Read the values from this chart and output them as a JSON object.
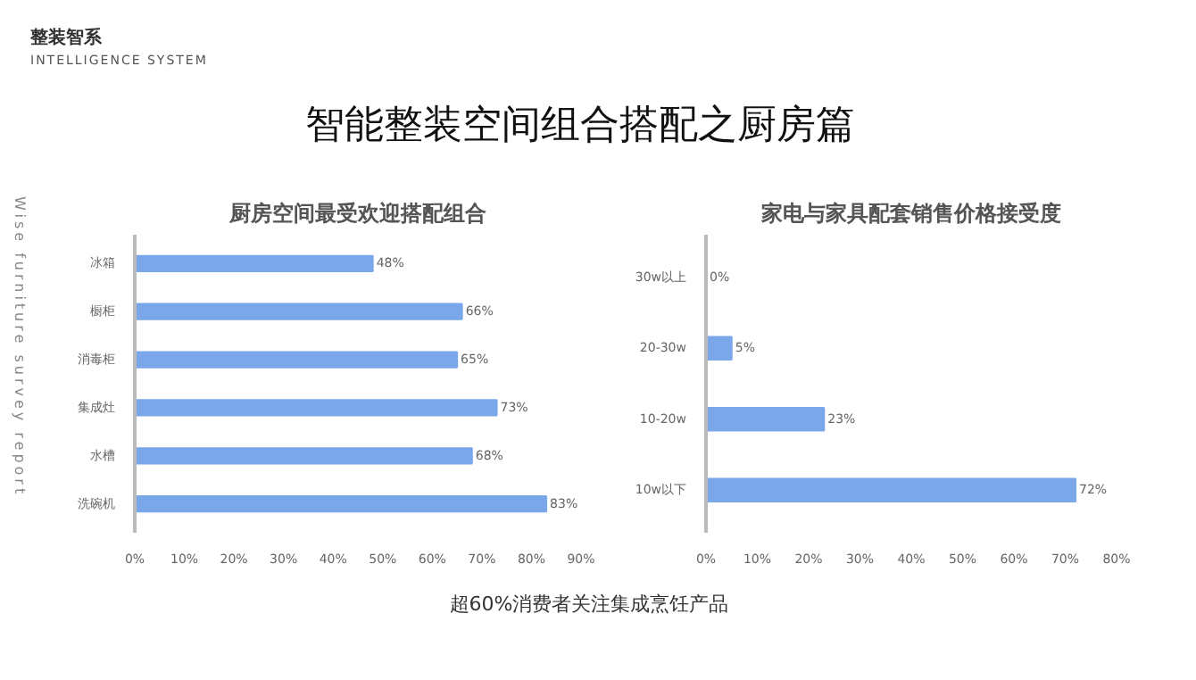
{
  "chart_data": [
    {
      "type": "other",
      "title": "智能整装空间组合搭配之厨房篇",
      "annotations": [
        "整装智系",
        "INTELLIGENCE SYSTEM",
        "Wise furniture survey report",
        "超60%消费者关注集成烹饪产品"
      ]
    },
    {
      "type": "bar",
      "orientation": "horizontal",
      "title": "厨房空间最受欢迎搭配组合",
      "categories": [
        "冰箱",
        "橱柜",
        "消毒柜",
        "集成灶",
        "水槽",
        "洗碗机"
      ],
      "values": [
        48,
        66,
        65,
        73,
        68,
        83
      ],
      "value_labels": [
        "48%",
        "66%",
        "65%",
        "73%",
        "68%",
        "83%"
      ],
      "color": "#7aa6ea",
      "xlim": [
        0,
        90
      ],
      "xticks": [
        {
          "value": 0,
          "label": "0%"
        },
        {
          "value": 10,
          "label": "10%"
        },
        {
          "value": 20,
          "label": "20%"
        },
        {
          "value": 30,
          "label": "30%"
        },
        {
          "value": 40,
          "label": "40%"
        },
        {
          "value": 50,
          "label": "50%"
        },
        {
          "value": 60,
          "label": "60%"
        },
        {
          "value": 70,
          "label": "70%"
        },
        {
          "value": 80,
          "label": "80%"
        },
        {
          "value": 90,
          "label": "90%"
        }
      ],
      "grid": false
    },
    {
      "type": "bar",
      "orientation": "horizontal",
      "title": "家电与家具配套销售价格接受度",
      "categories": [
        "30w以上",
        "20-30w",
        "10-20w",
        "10w以下"
      ],
      "values": [
        0,
        5,
        23,
        72
      ],
      "value_labels": [
        "0%",
        "5%",
        "23%",
        "72%"
      ],
      "color": "#7aa6ea",
      "xlim": [
        0,
        80
      ],
      "xticks": [
        {
          "value": 0,
          "label": "0%"
        },
        {
          "value": 10,
          "label": "10%"
        },
        {
          "value": 20,
          "label": "20%"
        },
        {
          "value": 30,
          "label": "30%"
        },
        {
          "value": 40,
          "label": "40%"
        },
        {
          "value": 50,
          "label": "50%"
        },
        {
          "value": 60,
          "label": "60%"
        },
        {
          "value": 70,
          "label": "70%"
        },
        {
          "value": 80,
          "label": "80%"
        }
      ],
      "grid": false
    }
  ]
}
